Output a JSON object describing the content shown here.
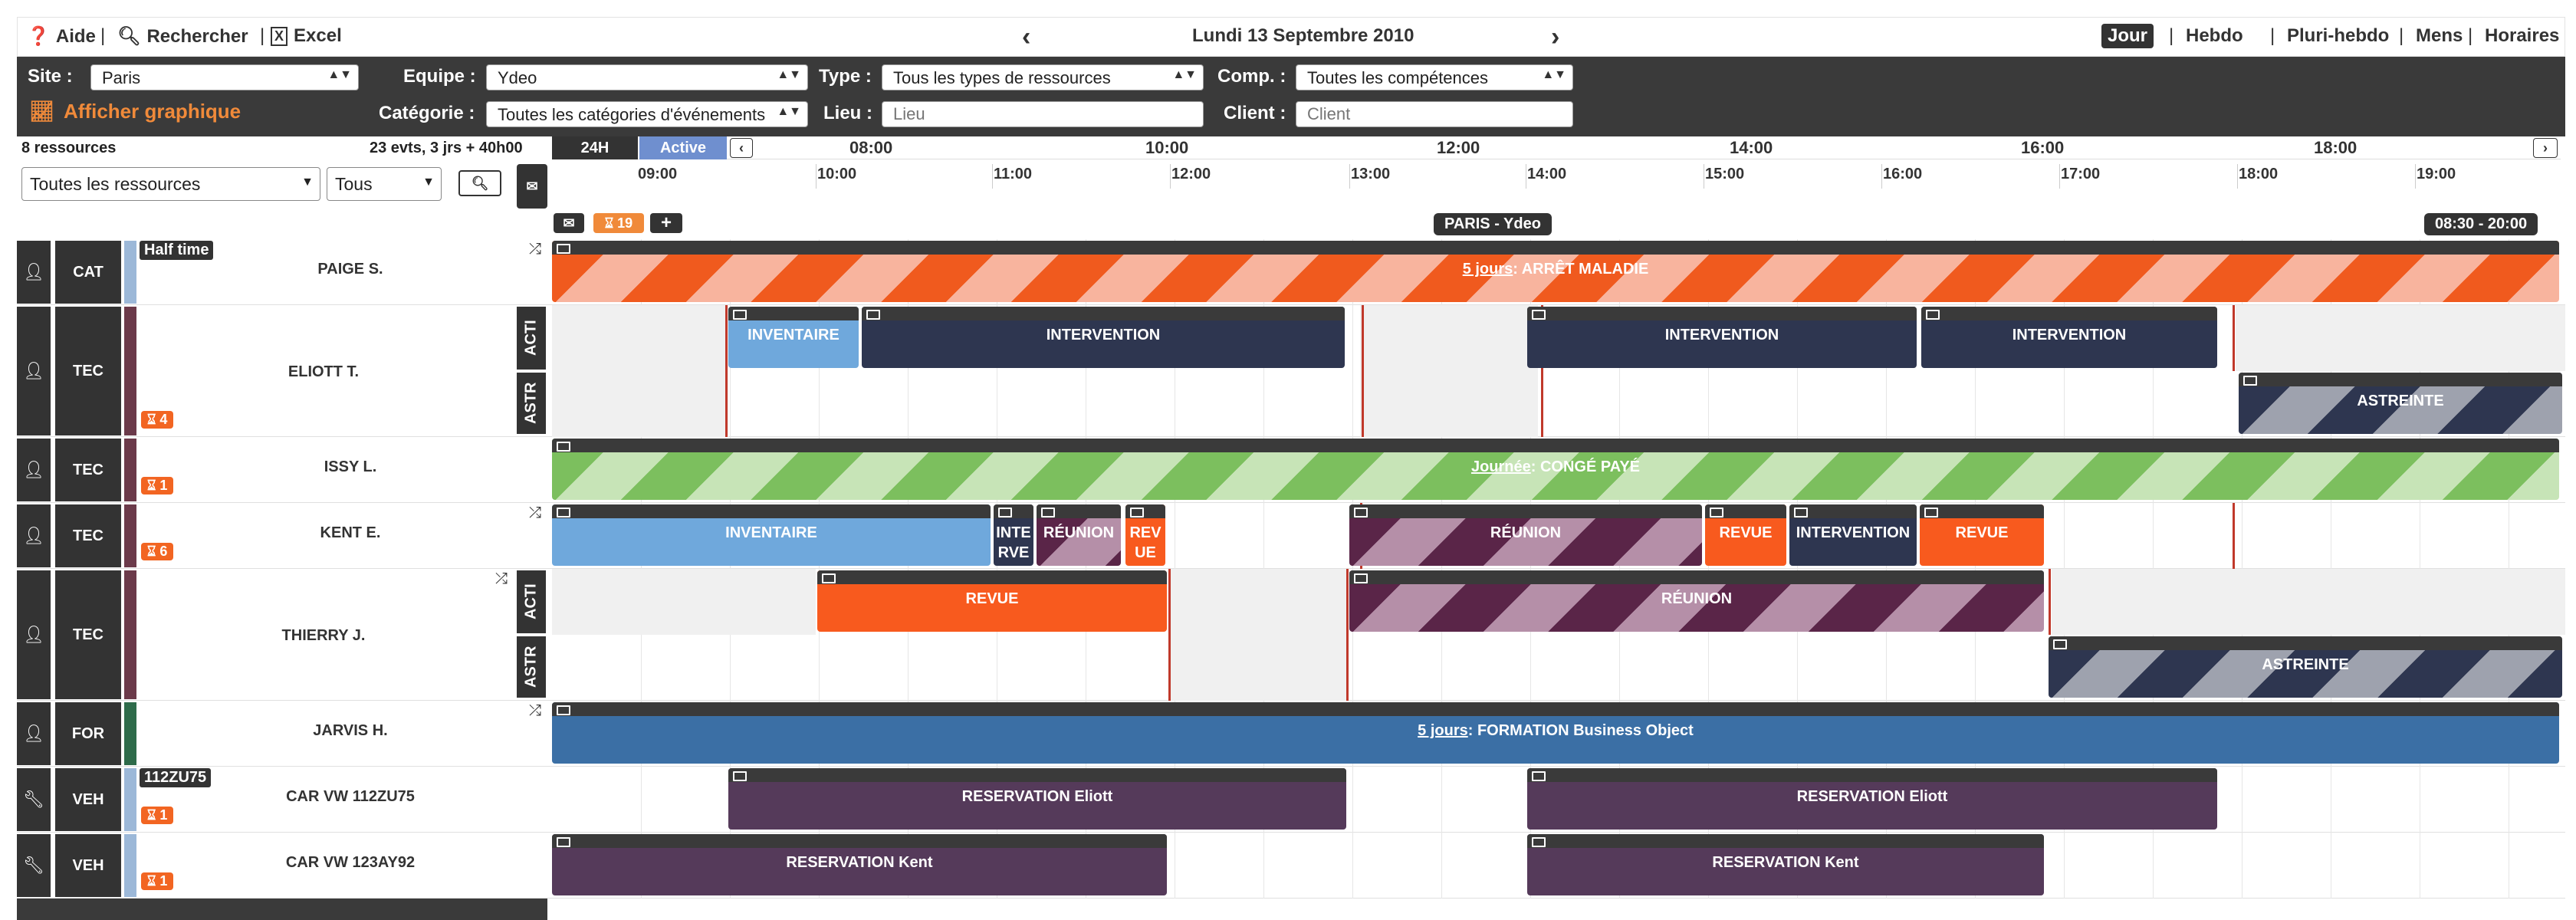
{
  "toolbar": {
    "help": "Aide",
    "search": "Rechercher",
    "excel": "Excel",
    "date": "Lundi 13 Septembre 2010",
    "views": [
      "Jour",
      "Hebdo",
      "Pluri-hebdo",
      "Mens",
      "Horaires"
    ]
  },
  "filters": {
    "site_label": "Site :",
    "site_value": "Paris",
    "equipe_label": "Equipe :",
    "equipe_value": "Ydeo",
    "type_label": "Type :",
    "type_value": "Tous les types de ressources",
    "comp_label": "Comp. :",
    "comp_value": "Toutes les compétences",
    "categorie_label": "Catégorie :",
    "categorie_value": "Toutes les catégories d'événements",
    "lieu_label": "Lieu :",
    "lieu_placeholder": "Lieu",
    "client_label": "Client :",
    "client_placeholder": "Client",
    "graph_link": "Afficher graphique"
  },
  "left_header": {
    "resources_count": "8 ressources",
    "summary": "23 evts, 3 jrs + 40h00",
    "resource_filter": "Toutes les ressources",
    "scope_filter": "Tous"
  },
  "timeline": {
    "toggle_24h": "24H",
    "toggle_active": "Active",
    "top_hours": [
      "08:00",
      "10:00",
      "12:00",
      "14:00",
      "16:00",
      "18:00"
    ],
    "hours": [
      "09:00",
      "10:00",
      "11:00",
      "12:00",
      "13:00",
      "14:00",
      "15:00",
      "16:00",
      "17:00",
      "18:00",
      "19:00"
    ],
    "notif_count": "19",
    "site_banner": "PARIS - Ydeo",
    "range": "08:30 - 20:00"
  },
  "rows": [
    {
      "type": "person",
      "cat": "CAT",
      "name": "PAIGE S.",
      "badge": "Half time",
      "count": "",
      "strip": "#9cb8d8"
    },
    {
      "type": "person",
      "cat": "TEC",
      "name": "ELIOTT T.",
      "badge": "",
      "count": "4",
      "strip": "#6b3a4a",
      "subtabs": [
        "ACTI",
        "ASTR"
      ]
    },
    {
      "type": "person",
      "cat": "TEC",
      "name": "ISSY L.",
      "badge": "",
      "count": "1",
      "strip": "#6b3a4a"
    },
    {
      "type": "person",
      "cat": "TEC",
      "name": "KENT E.",
      "badge": "",
      "count": "6",
      "strip": "#6b3a4a"
    },
    {
      "type": "person",
      "cat": "TEC",
      "name": "THIERRY J.",
      "badge": "",
      "count": "",
      "strip": "#6b3a4a",
      "subtabs": [
        "ACTI",
        "ASTR"
      ]
    },
    {
      "type": "person",
      "cat": "FOR",
      "name": "JARVIS H.",
      "badge": "",
      "count": "",
      "strip": "#2e6b4a"
    },
    {
      "type": "vehicle",
      "cat": "VEH",
      "name": "CAR VW 112ZU75",
      "badge": "112ZU75",
      "count": "1",
      "strip": "#9cb8d8"
    },
    {
      "type": "vehicle",
      "cat": "VEH",
      "name": "CAR VW 123AY92",
      "badge": "",
      "count": "1",
      "strip": "#9cb8d8"
    }
  ],
  "events": {
    "paige": {
      "link": "5 jours",
      "label": " : ARRÊT MALADIE"
    },
    "eliott_1": "INVENTAIRE",
    "eliott_2": "INTERVENTION",
    "eliott_3": "INTERVENTION",
    "eliott_4": "INTERVENTION",
    "eliott_astr": "ASTREINTE",
    "issy": {
      "link": "Journée",
      "label": " : CONGÉ PAYÉ"
    },
    "kent_1": "INVENTAIRE",
    "kent_2": "INTE RVE",
    "kent_3": "RÉUNION",
    "kent_4": "REV UE",
    "kent_5": "RÉUNION",
    "kent_6": "REVUE",
    "kent_7": "INTERVENTION",
    "kent_8": "REVUE",
    "thierry_1": "REVUE",
    "thierry_2": "RÉUNION",
    "thierry_astr": "ASTREINTE",
    "jarvis": {
      "link": "5 jours",
      "label": " : FORMATION Business Object"
    },
    "car1_1": "RESERVATION Eliott",
    "car1_2": "RESERVATION Eliott",
    "car2_1": "RESERVATION Kent",
    "car2_2": "RESERVATION Kent"
  }
}
